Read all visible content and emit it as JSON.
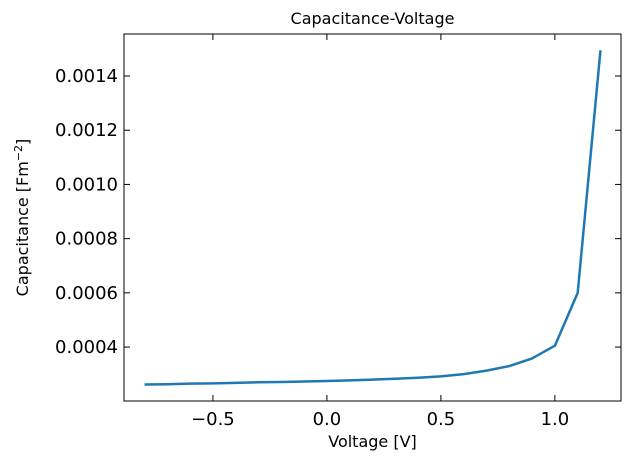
{
  "chart_data": {
    "type": "line",
    "title": "Capacitance-Voltage",
    "xlabel": "Voltage [V]",
    "ylabel_main": "Capacitance [Fm",
    "ylabel_sup": "−2",
    "ylabel_end": "]",
    "xlim": [
      -0.89,
      1.29
    ],
    "ylim": [
      0.000201,
      0.001555
    ],
    "x_ticks": [
      -0.5,
      0.0,
      0.5,
      1.0
    ],
    "x_tick_labels": [
      "−0.5",
      "0.0",
      "0.5",
      "1.0"
    ],
    "y_ticks": [
      0.0004,
      0.0006,
      0.0008,
      0.001,
      0.0012,
      0.0014
    ],
    "y_tick_labels": [
      "0.0004",
      "0.0006",
      "0.0008",
      "0.0010",
      "0.0012",
      "0.0014"
    ],
    "grid": false,
    "series": [
      {
        "color": "#1f77b4",
        "x": [
          -0.8,
          -0.7,
          -0.6,
          -0.5,
          -0.4,
          -0.3,
          -0.2,
          -0.1,
          0.0,
          0.1,
          0.2,
          0.3,
          0.4,
          0.5,
          0.6,
          0.7,
          0.8,
          0.9,
          1.0,
          1.1,
          1.2
        ],
        "y": [
          0.000262,
          0.000263,
          0.000265,
          0.000266,
          0.000268,
          0.00027,
          0.000271,
          0.000273,
          0.000275,
          0.000277,
          0.00028,
          0.000283,
          0.000287,
          0.000292,
          0.0003,
          0.000313,
          0.00033,
          0.000358,
          0.000405,
          0.0006,
          0.001495
        ]
      }
    ]
  }
}
